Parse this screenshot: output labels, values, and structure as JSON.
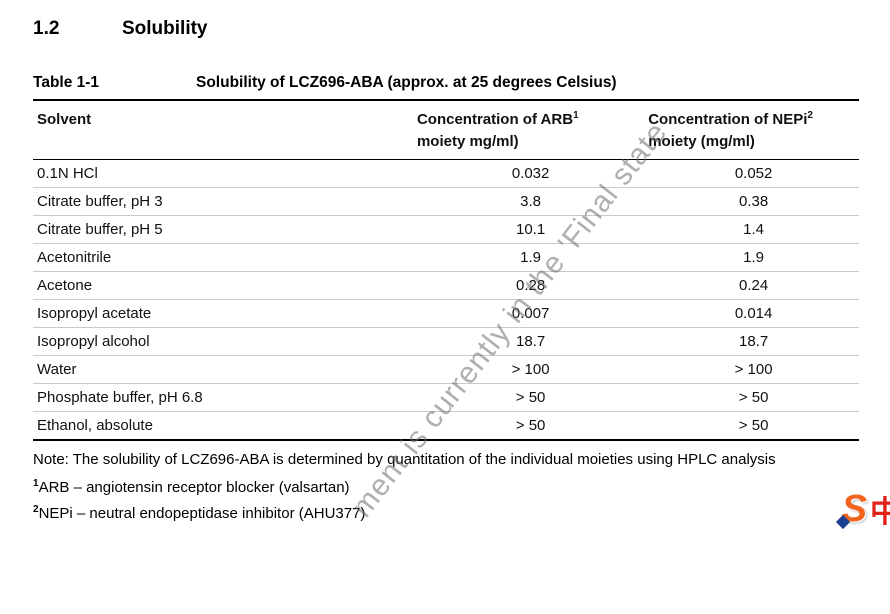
{
  "page": {
    "section_number": "1.2",
    "section_title": "Solubility"
  },
  "table": {
    "label": "Table 1-1",
    "title": "Solubility of LCZ696-ABA (approx. at 25 degrees Celsius)",
    "columns": {
      "solvent": "Solvent",
      "arb_line1": "Concentration of ARB",
      "arb_sup": "1",
      "arb_line2": "moiety mg/ml)",
      "nepi_line1": "Concentration of NEPi",
      "nepi_sup": "2",
      "nepi_line2": "moiety (mg/ml)"
    },
    "rows": [
      {
        "solvent": "0.1N HCl",
        "arb": "0.032",
        "nepi": "0.052"
      },
      {
        "solvent": "Citrate buffer, pH 3",
        "arb": "3.8",
        "nepi": "0.38"
      },
      {
        "solvent": "Citrate buffer, pH 5",
        "arb": "10.1",
        "nepi": "1.4"
      },
      {
        "solvent": "Acetonitrile",
        "arb": "1.9",
        "nepi": "1.9"
      },
      {
        "solvent": "Acetone",
        "arb": "0.28",
        "nepi": "0.24"
      },
      {
        "solvent": "Isopropyl acetate",
        "arb": "0.007",
        "nepi": "0.014"
      },
      {
        "solvent": "Isopropyl alcohol",
        "arb": "18.7",
        "nepi": "18.7"
      },
      {
        "solvent": "Water",
        "arb": "> 100",
        "nepi": "> 100"
      },
      {
        "solvent": "Phosphate buffer, pH 6.8",
        "arb": "> 50",
        "nepi": "> 50"
      },
      {
        "solvent": "Ethanol, absolute",
        "arb": "> 50",
        "nepi": "> 50"
      }
    ]
  },
  "notes": {
    "note": "Note: The solubility of LCZ696-ABA is determined by quantitation of the individual moieties using HPLC analysis",
    "fn1_sup": "1",
    "fn1_text": "ARB – angiotensin receptor blocker (valsartan)",
    "fn2_sup": "2",
    "fn2_text": "NEPi – neutral endopeptidase inhibitor (AHU377)"
  },
  "watermark": {
    "text": "ment is currently in the 'Final state"
  },
  "logo": {
    "letter": "S",
    "char": "中"
  }
}
